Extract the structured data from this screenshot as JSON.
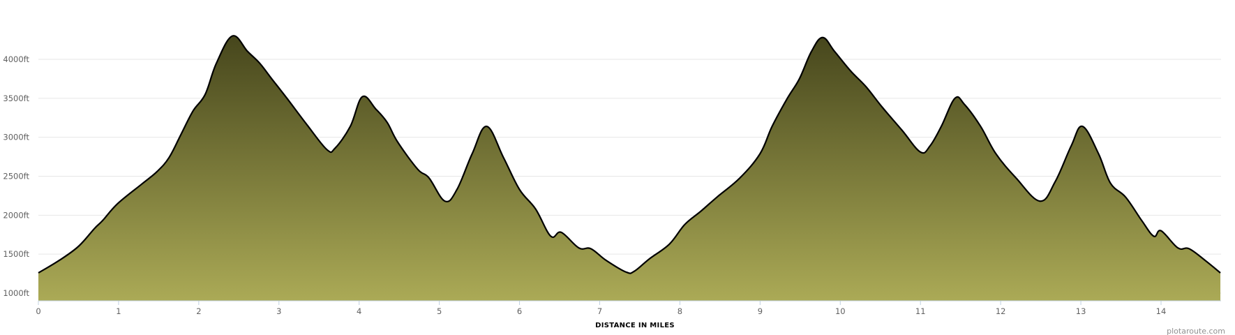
{
  "chart_data": {
    "type": "area",
    "title": "",
    "xlabel": "DISTANCE IN MILES",
    "ylabel": "",
    "xlim": [
      0,
      14.74
    ],
    "ylim": [
      900,
      4450
    ],
    "grid": true,
    "x_ticks": [
      "0",
      "1",
      "2",
      "3",
      "4",
      "5",
      "6",
      "7",
      "8",
      "9",
      "10",
      "11",
      "12",
      "13",
      "14"
    ],
    "y_ticks": [
      "1000ft",
      "1500ft",
      "2000ft",
      "2500ft",
      "3000ft",
      "3500ft",
      "4000ft"
    ],
    "y_tick_values": [
      1000,
      1500,
      2000,
      2500,
      3000,
      3500,
      4000
    ],
    "x_tick_values": [
      0,
      1,
      2,
      3,
      4,
      5,
      6,
      7,
      8,
      9,
      10,
      11,
      12,
      13,
      14
    ],
    "fill_gradient": {
      "top": "#46461c",
      "bottom": "#abaa56"
    },
    "line_color": "#000000",
    "x": [
      0,
      0.26,
      0.5,
      0.7,
      0.8,
      0.99,
      1.29,
      1.48,
      1.63,
      1.78,
      1.93,
      2.08,
      2.22,
      2.42,
      2.61,
      2.76,
      2.91,
      3.1,
      3.35,
      3.6,
      3.7,
      3.89,
      4.04,
      4.21,
      4.35,
      4.48,
      4.73,
      4.87,
      5.07,
      5.22,
      5.41,
      5.59,
      5.8,
      6.0,
      6.2,
      6.39,
      6.52,
      6.74,
      6.89,
      7.08,
      7.33,
      7.43,
      7.62,
      7.87,
      8.06,
      8.26,
      8.46,
      8.75,
      9.0,
      9.15,
      9.34,
      9.49,
      9.64,
      9.78,
      9.93,
      10.13,
      10.32,
      10.52,
      10.77,
      11.0,
      11.12,
      11.26,
      11.43,
      11.55,
      11.75,
      11.94,
      12.19,
      12.49,
      12.68,
      12.88,
      13.02,
      13.22,
      13.37,
      13.56,
      13.76,
      13.91,
      14.0,
      14.21,
      14.35,
      14.55,
      14.74
    ],
    "y": [
      1260,
      1420,
      1600,
      1830,
      1930,
      2150,
      2400,
      2560,
      2740,
      3040,
      3340,
      3550,
      3950,
      4300,
      4100,
      3950,
      3750,
      3500,
      3160,
      2840,
      2860,
      3140,
      3520,
      3360,
      3190,
      2940,
      2590,
      2480,
      2180,
      2330,
      2790,
      3140,
      2740,
      2330,
      2080,
      1730,
      1780,
      1580,
      1570,
      1420,
      1270,
      1280,
      1440,
      1630,
      1880,
      2050,
      2230,
      2480,
      2790,
      3140,
      3500,
      3750,
      4100,
      4280,
      4100,
      3850,
      3650,
      3390,
      3090,
      2810,
      2890,
      3140,
      3500,
      3420,
      3140,
      2790,
      2480,
      2180,
      2430,
      2890,
      3140,
      2790,
      2410,
      2230,
      1930,
      1730,
      1800,
      1580,
      1570,
      1420,
      1260
    ]
  },
  "credit": "plotaroute.com"
}
